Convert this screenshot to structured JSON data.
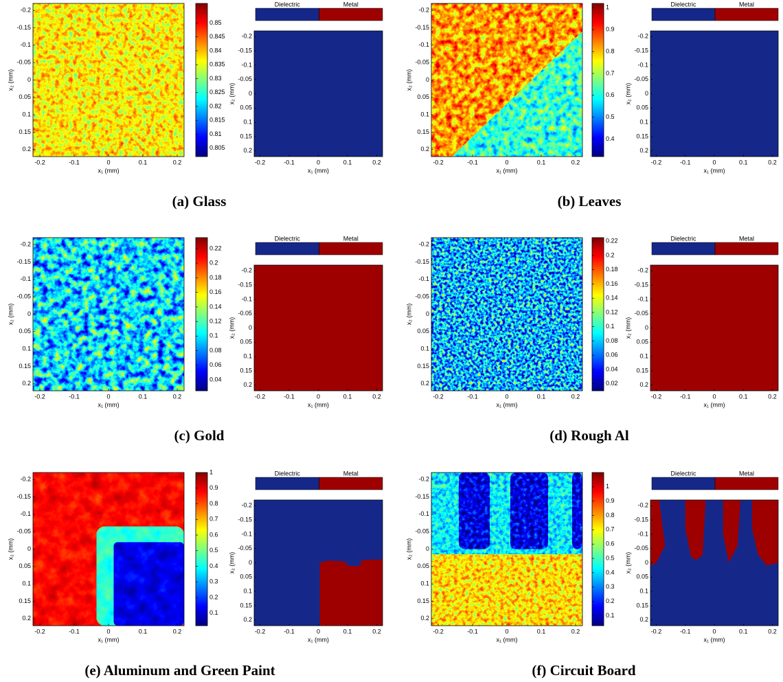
{
  "chart_data": [
    {
      "type": "heatmap",
      "xlabel": "x₁ (mm)",
      "ylabel": "x₂ (mm)",
      "xlim": [
        -0.22,
        0.22
      ],
      "ylim": [
        0.22,
        -0.22
      ],
      "xticks": [
        -0.2,
        -0.1,
        0,
        0.1,
        0.2
      ],
      "yticks": [
        -0.2,
        -0.15,
        -0.1,
        -0.05,
        0,
        0.05,
        0.1,
        0.15,
        0.2
      ],
      "colormap": "jet",
      "clim": [
        0.802,
        0.857
      ],
      "cticks": [
        0.805,
        0.81,
        0.815,
        0.82,
        0.825,
        0.83,
        0.835,
        0.84,
        0.845,
        0.85
      ]
    },
    {
      "type": "classification",
      "xlabel": "x₁ (mm)",
      "ylabel": "x₂ (mm)",
      "xlim": [
        -0.22,
        0.22
      ],
      "ylim": [
        0.22,
        -0.22
      ],
      "xticks": [
        -0.2,
        -0.1,
        0,
        0.1,
        0.2
      ],
      "yticks": [
        -0.2,
        -0.15,
        -0.1,
        -0.05,
        0,
        0.05,
        0.1,
        0.15,
        0.2
      ],
      "legend": [
        "Dielectric",
        "Metal"
      ],
      "colors": [
        "#15288a",
        "#9e0000"
      ],
      "class": 0
    },
    {
      "type": "heatmap",
      "xlabel": "x₁ (mm)",
      "ylabel": "x₂ (mm)",
      "xlim": [
        -0.22,
        0.22
      ],
      "ylim": [
        0.22,
        -0.22
      ],
      "xticks": [
        -0.2,
        -0.1,
        0,
        0.1,
        0.2
      ],
      "yticks": [
        -0.2,
        -0.15,
        -0.1,
        -0.05,
        0,
        0.05,
        0.1,
        0.15,
        0.2
      ],
      "colormap": "jet",
      "clim": [
        0.32,
        1.02
      ],
      "cticks": [
        0.4,
        0.5,
        0.6,
        0.7,
        0.8,
        0.9,
        1
      ]
    },
    {
      "type": "classification",
      "xlabel": "x₁ (mm)",
      "ylabel": "x₂ (mm)",
      "xlim": [
        -0.22,
        0.22
      ],
      "ylim": [
        0.22,
        -0.22
      ],
      "xticks": [
        -0.2,
        -0.1,
        0,
        0.1,
        0.2
      ],
      "yticks": [
        -0.2,
        -0.15,
        -0.1,
        -0.05,
        0,
        0.05,
        0.1,
        0.15,
        0.2
      ],
      "legend": [
        "Dielectric",
        "Metal"
      ],
      "colors": [
        "#15288a",
        "#9e0000"
      ],
      "class": 0
    },
    {
      "type": "heatmap",
      "xlabel": "x₁ (mm)",
      "ylabel": "x₂ (mm)",
      "xlim": [
        -0.22,
        0.22
      ],
      "ylim": [
        0.22,
        -0.22
      ],
      "xticks": [
        -0.2,
        -0.1,
        0,
        0.1,
        0.2
      ],
      "yticks": [
        -0.2,
        -0.15,
        -0.1,
        -0.05,
        0,
        0.05,
        0.1,
        0.15,
        0.2
      ],
      "colormap": "jet",
      "clim": [
        0.025,
        0.235
      ],
      "cticks": [
        0.04,
        0.06,
        0.08,
        0.1,
        0.12,
        0.14,
        0.16,
        0.18,
        0.2,
        0.22
      ]
    },
    {
      "type": "classification",
      "xlabel": "x₁ (mm)",
      "ylabel": "x₂ (mm)",
      "xlim": [
        -0.22,
        0.22
      ],
      "ylim": [
        0.22,
        -0.22
      ],
      "xticks": [
        -0.2,
        -0.1,
        0,
        0.1,
        0.2
      ],
      "yticks": [
        -0.2,
        -0.15,
        -0.1,
        -0.05,
        0,
        0.05,
        0.1,
        0.15,
        0.2
      ],
      "legend": [
        "Dielectric",
        "Metal"
      ],
      "colors": [
        "#15288a",
        "#9e0000"
      ],
      "class": 1
    },
    {
      "type": "heatmap",
      "xlabel": "x₁ (mm)",
      "ylabel": "x₂ (mm)",
      "xlim": [
        -0.22,
        0.22
      ],
      "ylim": [
        0.22,
        -0.22
      ],
      "xticks": [
        -0.2,
        -0.1,
        0,
        0.1,
        0.2
      ],
      "yticks": [
        -0.2,
        -0.15,
        -0.1,
        -0.05,
        0,
        0.05,
        0.1,
        0.15,
        0.2
      ],
      "colormap": "jet",
      "clim": [
        0.01,
        0.225
      ],
      "cticks": [
        0.02,
        0.04,
        0.06,
        0.08,
        0.1,
        0.12,
        0.14,
        0.16,
        0.18,
        0.2,
        0.22
      ]
    },
    {
      "type": "classification",
      "xlabel": "x₁ (mm)",
      "ylabel": "x₂ (mm)",
      "xlim": [
        -0.22,
        0.22
      ],
      "ylim": [
        0.22,
        -0.22
      ],
      "xticks": [
        -0.2,
        -0.1,
        0,
        0.1,
        0.2
      ],
      "yticks": [
        -0.2,
        -0.15,
        -0.1,
        -0.05,
        0,
        0.05,
        0.1,
        0.15,
        0.2
      ],
      "legend": [
        "Dielectric",
        "Metal"
      ],
      "colors": [
        "#15288a",
        "#9e0000"
      ],
      "class": 1
    },
    {
      "type": "heatmap",
      "xlabel": "x₁ (mm)",
      "ylabel": "x₂ (mm)",
      "xlim": [
        -0.22,
        0.22
      ],
      "ylim": [
        0.22,
        -0.22
      ],
      "xticks": [
        -0.2,
        -0.1,
        0,
        0.1,
        0.2
      ],
      "yticks": [
        -0.2,
        -0.15,
        -0.1,
        -0.05,
        0,
        0.05,
        0.1,
        0.15,
        0.2
      ],
      "colormap": "jet",
      "clim": [
        0.02,
        1
      ],
      "cticks": [
        0.1,
        0.2,
        0.3,
        0.4,
        0.5,
        0.6,
        0.7,
        0.8,
        0.9,
        1
      ]
    },
    {
      "type": "classification",
      "xlabel": "x₁ (mm)",
      "ylabel": "x₂ (mm)",
      "xlim": [
        -0.22,
        0.22
      ],
      "ylim": [
        0.22,
        -0.22
      ],
      "xticks": [
        -0.2,
        -0.1,
        0,
        0.1,
        0.2
      ],
      "yticks": [
        -0.2,
        -0.15,
        -0.1,
        -0.05,
        0,
        0.05,
        0.1,
        0.15,
        0.2
      ],
      "legend": [
        "Dielectric",
        "Metal"
      ],
      "colors": [
        "#15288a",
        "#9e0000"
      ],
      "class": 0
    },
    {
      "type": "heatmap",
      "xlabel": "x₁ (mm)",
      "ylabel": "x₂ (mm)",
      "xlim": [
        -0.22,
        0.22
      ],
      "ylim": [
        0.22,
        -0.22
      ],
      "xticks": [
        -0.2,
        -0.1,
        0,
        0.1,
        0.2
      ],
      "yticks": [
        -0.2,
        -0.15,
        -0.1,
        -0.05,
        0,
        0.05,
        0.1,
        0.15,
        0.2
      ],
      "colormap": "jet",
      "clim": [
        0.03,
        1.1
      ],
      "cticks": [
        0.1,
        0.2,
        0.3,
        0.4,
        0.5,
        0.6,
        0.7,
        0.8,
        0.9,
        1
      ]
    },
    {
      "type": "classification",
      "xlabel": "x₁ (mm)",
      "ylabel": "x₂ (mm)",
      "xlim": [
        -0.22,
        0.22
      ],
      "ylim": [
        0.22,
        -0.22
      ],
      "xticks": [
        -0.2,
        -0.1,
        0,
        0.1,
        0.2
      ],
      "yticks": [
        -0.2,
        -0.15,
        -0.1,
        -0.05,
        0,
        0.05,
        0.1,
        0.15,
        0.2
      ],
      "legend": [
        "Dielectric",
        "Metal"
      ],
      "colors": [
        "#15288a",
        "#9e0000"
      ],
      "class": 0
    }
  ],
  "captions": [
    "(a) Glass",
    "(b) Leaves",
    "(c) Gold",
    "(d) Rough Al",
    "(e) Aluminum and Green Paint",
    "(f) Circuit Board"
  ]
}
